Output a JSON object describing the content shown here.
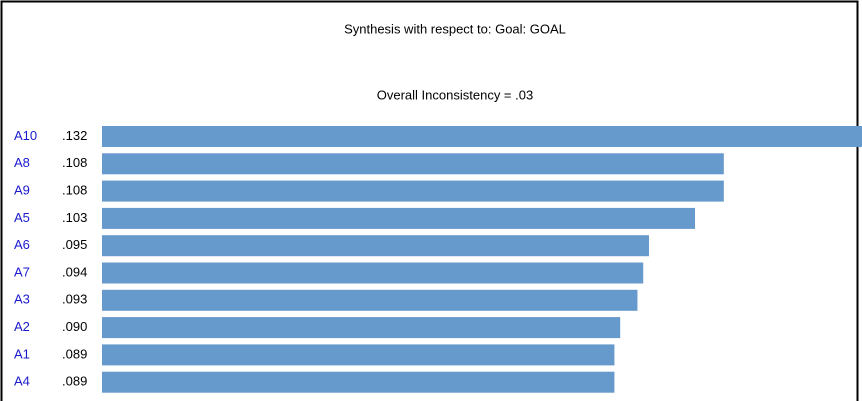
{
  "chart_data": {
    "type": "bar",
    "orientation": "horizontal",
    "title": "Synthesis with respect to: Goal: GOAL",
    "subtitle": "Overall Inconsistency = .03",
    "categories": [
      "A10",
      "A8",
      "A9",
      "A5",
      "A6",
      "A7",
      "A3",
      "A2",
      "A1",
      "A4"
    ],
    "values": [
      0.132,
      0.108,
      0.108,
      0.103,
      0.095,
      0.094,
      0.093,
      0.09,
      0.089,
      0.089
    ],
    "value_labels": [
      ".132",
      ".108",
      ".108",
      ".103",
      ".095",
      ".094",
      ".093",
      ".090",
      ".089",
      ".089"
    ],
    "color": "#6699cc"
  }
}
